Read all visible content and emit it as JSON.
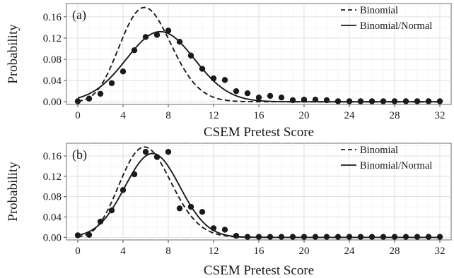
{
  "chart_data": [
    {
      "type": "line",
      "panel_label": "(a)",
      "xlabel": "CSEM Pretest Score",
      "ylabel": "Probability",
      "xlim": [
        -1,
        33
      ],
      "ylim": [
        -0.005,
        0.185
      ],
      "xticks": [
        0,
        4,
        8,
        12,
        16,
        20,
        24,
        28,
        32
      ],
      "yticks": [
        0.0,
        0.04,
        0.08,
        0.12,
        0.16
      ],
      "ytick_labels": [
        "0.00",
        "0.04",
        "0.08",
        "0.12",
        "0.16"
      ],
      "grid": true,
      "legend_position": "top-right",
      "series": [
        {
          "name": "Binomial",
          "style": "dashed",
          "color": "#1a1a1a",
          "model": "binomial",
          "mean": 6.2
        },
        {
          "name": "Binomial/Normal",
          "style": "solid",
          "color": "#1a1a1a",
          "model": "binomial-normal",
          "mean": 7.3,
          "sd": 3.02
        },
        {
          "type": "scatter",
          "color": "#1a1a1a",
          "x": [
            0,
            1,
            2,
            3,
            4,
            5,
            6,
            7,
            8,
            9,
            10,
            11,
            12,
            13,
            14,
            15,
            16,
            17,
            18,
            19,
            20,
            21,
            22,
            23,
            24,
            25,
            26,
            27,
            28,
            29,
            30,
            31,
            32
          ],
          "y": [
            0.001,
            0.006,
            0.015,
            0.035,
            0.057,
            0.097,
            0.122,
            0.126,
            0.134,
            0.113,
            0.087,
            0.062,
            0.044,
            0.041,
            0.02,
            0.016,
            0.008,
            0.011,
            0.008,
            0.003,
            0.004,
            0.004,
            0.003,
            0.001,
            0.001,
            0.001,
            0.001,
            0.001,
            0.001,
            0.001,
            0.001,
            0.001,
            0.001
          ]
        }
      ]
    },
    {
      "type": "line",
      "panel_label": "(b)",
      "xlabel": "CSEM Pretest Score",
      "ylabel": "Probability",
      "xlim": [
        -1,
        33
      ],
      "ylim": [
        -0.005,
        0.185
      ],
      "xticks": [
        0,
        4,
        8,
        12,
        16,
        20,
        24,
        28,
        32
      ],
      "yticks": [
        0.0,
        0.04,
        0.08,
        0.12,
        0.16
      ],
      "ytick_labels": [
        "0.00",
        "0.04",
        "0.08",
        "0.12",
        "0.16"
      ],
      "grid": true,
      "legend_position": "top-right",
      "series": [
        {
          "name": "Binomial",
          "style": "dashed",
          "color": "#1a1a1a",
          "model": "binomial",
          "mean": 6.2
        },
        {
          "name": "Binomial/Normal",
          "style": "solid",
          "color": "#1a1a1a",
          "model": "binomial-normal",
          "mean": 6.6,
          "sd": 2.42
        },
        {
          "type": "scatter",
          "color": "#1a1a1a",
          "x": [
            0,
            1,
            2,
            3,
            4,
            5,
            6,
            7,
            8,
            9,
            10,
            11,
            12,
            13,
            14,
            15,
            16,
            17,
            18,
            19,
            20,
            21,
            22,
            23,
            24,
            25,
            26,
            27,
            28,
            29,
            30,
            31,
            32
          ],
          "y": [
            0.004,
            0.005,
            0.031,
            0.053,
            0.093,
            0.124,
            0.168,
            0.158,
            0.168,
            0.057,
            0.06,
            0.05,
            0.018,
            0.015,
            0.003,
            0.001,
            0.001,
            0.001,
            0.001,
            0.001,
            0.001,
            0.001,
            0.001,
            0.001,
            0.001,
            0.001,
            0.001,
            0.001,
            0.001,
            0.001,
            0.001,
            0.001,
            0.001
          ]
        }
      ]
    }
  ]
}
